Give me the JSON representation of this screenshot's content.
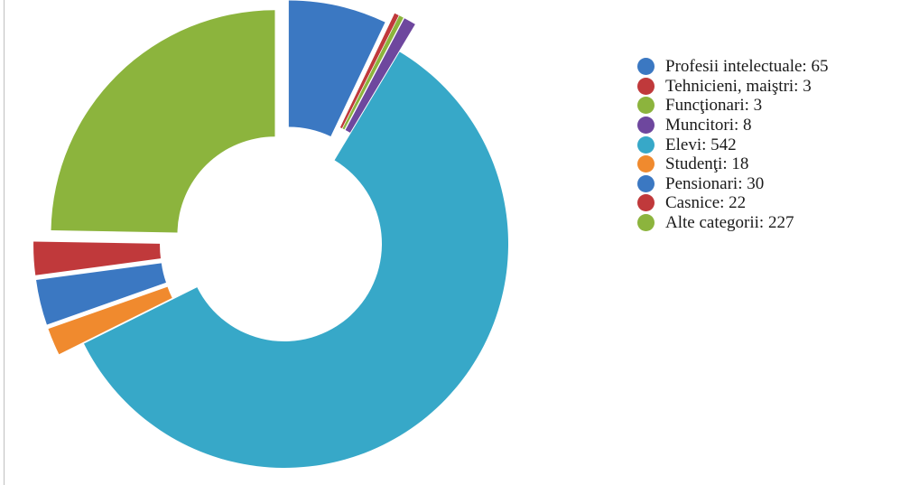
{
  "chart_data": {
    "type": "pie",
    "title": "",
    "legend_position": "right",
    "categories": [
      "Profesii intelectuale",
      "Tehnicieni, maiştri",
      "Funcţionari",
      "Muncitori",
      "Elevi",
      "Studenţi",
      "Pensionari",
      "Casnice",
      "Alte categorii"
    ],
    "values": [
      65,
      3,
      3,
      8,
      542,
      18,
      30,
      22,
      227
    ],
    "colors": [
      "#3b78c2",
      "#c0393b",
      "#8cb43d",
      "#6e479e",
      "#37a8c8",
      "#f08a2e",
      "#3b78c2",
      "#c0393b",
      "#8cb43d"
    ]
  }
}
